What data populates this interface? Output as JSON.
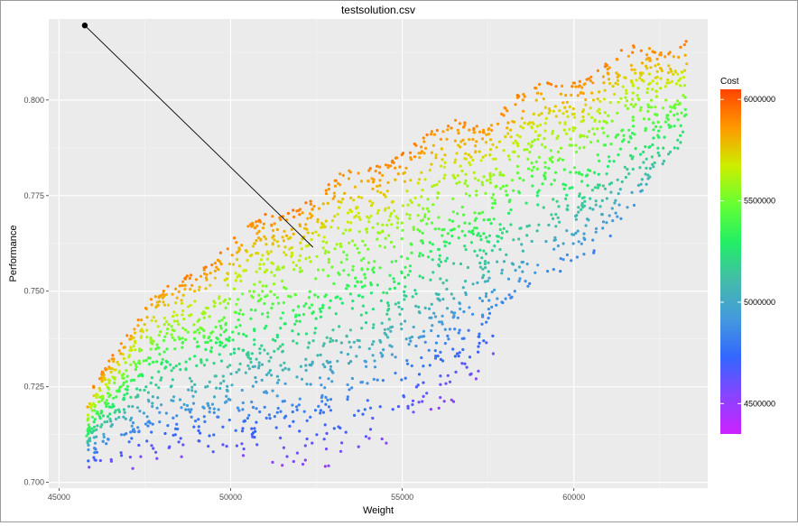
{
  "chart_data": {
    "type": "scatter",
    "title": "testsolution.csv",
    "xlabel": "Weight",
    "ylabel": "Performance",
    "xlim": [
      44700,
      63900
    ],
    "ylim": [
      0.6985,
      0.8212
    ],
    "x_ticks": [
      45000,
      50000,
      55000,
      60000
    ],
    "y_ticks": [
      0.7,
      0.725,
      0.75,
      0.775,
      0.8
    ],
    "x_tick_labels": [
      "45000",
      "50000",
      "55000",
      "60000"
    ],
    "y_tick_labels": [
      "0.700",
      "0.725",
      "0.750",
      "0.775",
      "0.800"
    ],
    "grid": true,
    "legend": {
      "title": "Cost",
      "placement": "right",
      "range": [
        4350000,
        6050000
      ],
      "ticks": [
        4500000,
        5000000,
        5500000,
        6000000
      ],
      "tick_labels": [
        "4500000",
        "5000000",
        "5500000",
        "6000000"
      ],
      "colors": [
        "#cc22ff",
        "#8844ff",
        "#3366ff",
        "#4499dd",
        "#44bbaa",
        "#22ee66",
        "#66ff33",
        "#ccee00",
        "#ff9900",
        "#ff4400"
      ]
    },
    "front": {
      "weight_min": 45800,
      "weight_max": 63300,
      "performance_low": 0.7025,
      "performance_high": 0.8175,
      "cost_min": 4400000,
      "cost_max": 6000000,
      "point_count": 2600
    },
    "highlight": {
      "from": {
        "x": 45750,
        "y": 0.8195
      },
      "to": {
        "x": 52400,
        "y": 0.7615
      }
    }
  }
}
